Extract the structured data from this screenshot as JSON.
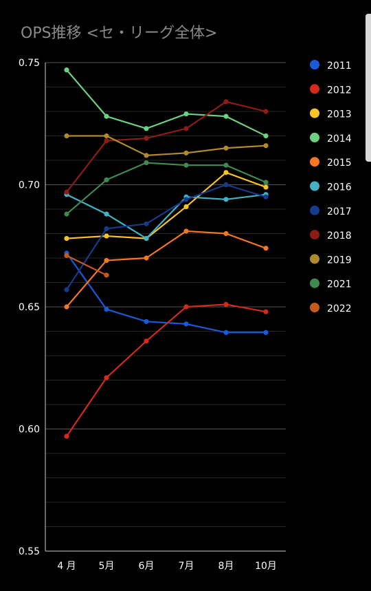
{
  "chart_data": {
    "type": "line",
    "title": "OPS推移 <セ・リーグ全体>",
    "categories": [
      "4 月",
      "5月",
      "6月",
      "7月",
      "8月",
      "10月"
    ],
    "yticks": [
      "0.75",
      "0.70",
      "0.65",
      "0.60",
      "0.55"
    ],
    "ylim": [
      0.55,
      0.75
    ],
    "grid": true,
    "legend": "right",
    "series": [
      {
        "name": "2011",
        "color": "#1a5ad8",
        "values": [
          0.672,
          0.649,
          0.644,
          0.643,
          0.6395,
          0.6395
        ]
      },
      {
        "name": "2012",
        "color": "#d42a1c",
        "values": [
          0.597,
          0.621,
          0.636,
          0.65,
          0.651,
          0.648
        ]
      },
      {
        "name": "2013",
        "color": "#f7c325",
        "values": [
          0.678,
          0.679,
          0.678,
          0.691,
          0.705,
          0.699
        ]
      },
      {
        "name": "2014",
        "color": "#6bd183",
        "values": [
          0.747,
          0.728,
          0.723,
          0.729,
          0.728,
          0.72
        ]
      },
      {
        "name": "2015",
        "color": "#f5771f",
        "values": [
          0.65,
          0.669,
          0.67,
          0.681,
          0.68,
          0.674
        ]
      },
      {
        "name": "2016",
        "color": "#43b3c4",
        "values": [
          0.696,
          0.688,
          0.678,
          0.695,
          0.694,
          0.696
        ]
      },
      {
        "name": "2017",
        "color": "#143c8c",
        "values": [
          0.657,
          0.682,
          0.684,
          0.694,
          0.7,
          0.695
        ]
      },
      {
        "name": "2018",
        "color": "#8c1c14",
        "values": [
          0.697,
          0.718,
          0.719,
          0.723,
          0.734,
          0.73
        ]
      },
      {
        "name": "2019",
        "color": "#b08a2c",
        "values": [
          0.72,
          0.72,
          0.712,
          0.713,
          0.715,
          0.716
        ]
      },
      {
        "name": "2021",
        "color": "#3f8a4f",
        "values": [
          0.688,
          0.702,
          0.709,
          0.708,
          0.708,
          0.701
        ]
      },
      {
        "name": "2022",
        "color": "#c45a1c",
        "values": [
          0.671,
          0.663,
          null,
          null,
          null,
          null
        ]
      }
    ]
  }
}
